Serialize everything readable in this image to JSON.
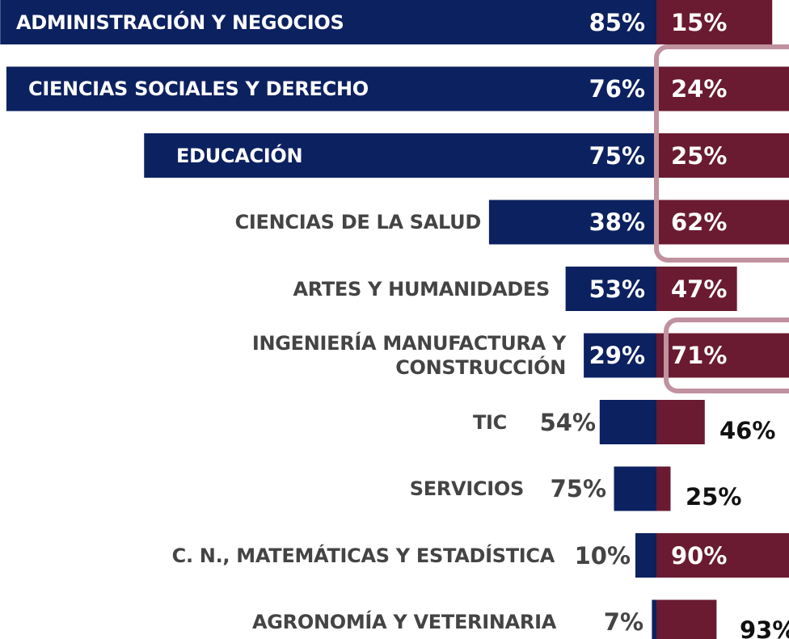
{
  "chart_data": {
    "type": "diverging-bar",
    "categories": [
      "ADMINISTRACIÓN Y NEGOCIOS",
      "CIENCIAS SOCIALES Y DERECHO",
      "EDUCACIÓN",
      "CIENCIAS DE LA SALUD",
      "ARTES Y HUMANIDADES",
      "INGENIERÍA MANUFACTURA Y CONSTRUCCIÓN",
      "TIC",
      "SERVICIOS",
      "C. N., MATEMÁTICAS Y ESTADÍSTICA",
      "AGRONOMÍA Y VETERINARIA"
    ],
    "series": [
      {
        "color": "#0c2160",
        "values": [
          85,
          76,
          75,
          38,
          53,
          29,
          54,
          75,
          10,
          7
        ]
      },
      {
        "color": "#6a1b31",
        "values": [
          15,
          24,
          25,
          62,
          47,
          71,
          46,
          25,
          90,
          93
        ]
      }
    ]
  }
}
